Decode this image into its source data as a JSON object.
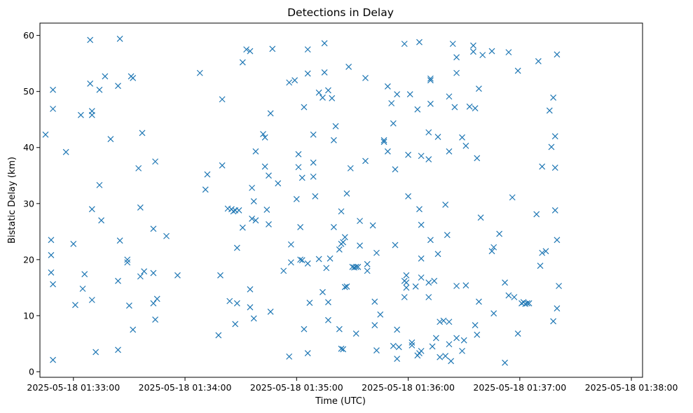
{
  "chart_data": {
    "type": "scatter",
    "title": "Detections in Delay",
    "xlabel": "Time (UTC)",
    "ylabel": "Bistatic Delay (km)",
    "marker": "x",
    "marker_color": "#1f77b4",
    "grid": false,
    "legend": "none",
    "date": "2025-05-18",
    "xlim": [
      "01:32:42",
      "01:38:06"
    ],
    "ylim": [
      -1,
      62.2
    ],
    "xticks": [
      "01:33:00",
      "01:34:00",
      "01:35:00",
      "01:36:00",
      "01:37:00",
      "01:38:00"
    ],
    "xtick_labels": [
      "2025-05-18 01:33:00",
      "2025-05-18 01:34:00",
      "2025-05-18 01:35:00",
      "2025-05-18 01:36:00",
      "2025-05-18 01:37:00",
      "2025-05-18 01:38:00"
    ],
    "yticks": [
      0,
      10,
      20,
      30,
      40,
      50,
      60
    ],
    "ytick_labels": [
      "0",
      "10",
      "20",
      "30",
      "40",
      "50",
      "60"
    ],
    "series": [
      {
        "points": [
          [
            "01:32:45",
            42.3
          ],
          [
            "01:32:48",
            23.5
          ],
          [
            "01:32:48",
            20.8
          ],
          [
            "01:32:48",
            17.7
          ],
          [
            "01:32:49",
            15.6
          ],
          [
            "01:32:49",
            50.3
          ],
          [
            "01:32:49",
            46.9
          ],
          [
            "01:32:49",
            2.1
          ],
          [
            "01:32:56",
            39.2
          ],
          [
            "01:33:00",
            22.8
          ],
          [
            "01:33:01",
            11.9
          ],
          [
            "01:33:04",
            45.8
          ],
          [
            "01:33:05",
            14.8
          ],
          [
            "01:33:06",
            17.4
          ],
          [
            "01:33:09",
            59.2
          ],
          [
            "01:33:09",
            51.4
          ],
          [
            "01:33:10",
            46.5
          ],
          [
            "01:33:10",
            45.8
          ],
          [
            "01:33:10",
            29.0
          ],
          [
            "01:33:10",
            12.8
          ],
          [
            "01:33:12",
            3.5
          ],
          [
            "01:33:14",
            33.3
          ],
          [
            "01:33:14",
            50.3
          ],
          [
            "01:33:15",
            27.0
          ],
          [
            "01:33:17",
            52.7
          ],
          [
            "01:33:20",
            41.5
          ],
          [
            "01:33:24",
            51.0
          ],
          [
            "01:33:24",
            3.9
          ],
          [
            "01:33:24",
            16.2
          ],
          [
            "01:33:25",
            59.4
          ],
          [
            "01:33:25",
            23.4
          ],
          [
            "01:33:29",
            20.0
          ],
          [
            "01:33:29",
            19.5
          ],
          [
            "01:33:30",
            11.8
          ],
          [
            "01:33:31",
            52.7
          ],
          [
            "01:33:32",
            52.4
          ],
          [
            "01:33:32",
            7.5
          ],
          [
            "01:33:35",
            36.3
          ],
          [
            "01:33:36",
            17.0
          ],
          [
            "01:33:37",
            42.6
          ],
          [
            "01:33:36",
            29.3
          ],
          [
            "01:33:38",
            17.9
          ],
          [
            "01:33:43",
            17.6
          ],
          [
            "01:33:43",
            25.5
          ],
          [
            "01:33:43",
            12.2
          ],
          [
            "01:33:44",
            37.5
          ],
          [
            "01:33:44",
            9.3
          ],
          [
            "01:33:45",
            13.0
          ],
          [
            "01:33:50",
            24.2
          ],
          [
            "01:33:56",
            17.2
          ],
          [
            "01:34:08",
            53.3
          ],
          [
            "01:34:11",
            32.5
          ],
          [
            "01:34:12",
            35.2
          ],
          [
            "01:34:18",
            6.5
          ],
          [
            "01:34:19",
            17.2
          ],
          [
            "01:34:20",
            36.8
          ],
          [
            "01:34:20",
            48.6
          ],
          [
            "01:34:23",
            29.1
          ],
          [
            "01:34:24",
            12.6
          ],
          [
            "01:34:25",
            29.0
          ],
          [
            "01:34:26",
            28.6
          ],
          [
            "01:34:27",
            8.5
          ],
          [
            "01:34:27",
            28.8
          ],
          [
            "01:34:28",
            22.1
          ],
          [
            "01:34:28",
            12.2
          ],
          [
            "01:34:29",
            28.8
          ],
          [
            "01:34:31",
            25.7
          ],
          [
            "01:34:31",
            55.2
          ],
          [
            "01:34:33",
            57.5
          ],
          [
            "01:34:35",
            57.2
          ],
          [
            "01:34:35",
            11.5
          ],
          [
            "01:34:35",
            14.7
          ],
          [
            "01:34:36",
            27.3
          ],
          [
            "01:34:36",
            32.8
          ],
          [
            "01:34:37",
            30.4
          ],
          [
            "01:34:37",
            9.5
          ],
          [
            "01:34:38",
            39.3
          ],
          [
            "01:34:38",
            27.0
          ],
          [
            "01:34:42",
            42.4
          ],
          [
            "01:34:43",
            36.6
          ],
          [
            "01:34:43",
            41.8
          ],
          [
            "01:34:44",
            28.9
          ],
          [
            "01:34:45",
            26.3
          ],
          [
            "01:34:45",
            35.0
          ],
          [
            "01:34:46",
            10.7
          ],
          [
            "01:34:46",
            46.1
          ],
          [
            "01:34:47",
            57.6
          ],
          [
            "01:34:50",
            33.6
          ],
          [
            "01:34:53",
            18.0
          ],
          [
            "01:34:56",
            51.6
          ],
          [
            "01:34:56",
            2.7
          ],
          [
            "01:34:57",
            19.5
          ],
          [
            "01:34:57",
            22.7
          ],
          [
            "01:34:59",
            52.0
          ],
          [
            "01:35:00",
            30.8
          ],
          [
            "01:35:01",
            36.5
          ],
          [
            "01:35:01",
            38.8
          ],
          [
            "01:35:02",
            25.8
          ],
          [
            "01:35:02",
            20.0
          ],
          [
            "01:35:03",
            34.6
          ],
          [
            "01:35:03",
            19.9
          ],
          [
            "01:35:04",
            47.2
          ],
          [
            "01:35:04",
            7.6
          ],
          [
            "01:35:06",
            57.5
          ],
          [
            "01:35:06",
            53.2
          ],
          [
            "01:35:06",
            3.3
          ],
          [
            "01:35:06",
            19.3
          ],
          [
            "01:35:07",
            12.3
          ],
          [
            "01:35:09",
            37.3
          ],
          [
            "01:35:09",
            42.3
          ],
          [
            "01:35:09",
            34.8
          ],
          [
            "01:35:10",
            31.3
          ],
          [
            "01:35:12",
            49.8
          ],
          [
            "01:35:12",
            20.1
          ],
          [
            "01:35:14",
            14.2
          ],
          [
            "01:35:14",
            48.9
          ],
          [
            "01:35:15",
            53.4
          ],
          [
            "01:35:15",
            58.6
          ],
          [
            "01:35:16",
            18.5
          ],
          [
            "01:35:17",
            12.4
          ],
          [
            "01:35:17",
            9.2
          ],
          [
            "01:35:17",
            50.2
          ],
          [
            "01:35:18",
            20.2
          ],
          [
            "01:35:19",
            48.8
          ],
          [
            "01:35:20",
            41.3
          ],
          [
            "01:35:20",
            25.8
          ],
          [
            "01:35:21",
            43.8
          ],
          [
            "01:35:23",
            21.8
          ],
          [
            "01:35:23",
            7.6
          ],
          [
            "01:35:24",
            28.6
          ],
          [
            "01:35:24",
            22.8
          ],
          [
            "01:35:24",
            4.1
          ],
          [
            "01:35:25",
            4.0
          ],
          [
            "01:35:25",
            23.1
          ],
          [
            "01:35:26",
            24.0
          ],
          [
            "01:35:26",
            15.1
          ],
          [
            "01:35:27",
            15.2
          ],
          [
            "01:35:27",
            31.8
          ],
          [
            "01:35:28",
            54.4
          ],
          [
            "01:35:29",
            36.3
          ],
          [
            "01:35:30",
            18.7
          ],
          [
            "01:35:31",
            18.6
          ],
          [
            "01:35:32",
            18.7
          ],
          [
            "01:35:32",
            6.8
          ],
          [
            "01:35:33",
            18.7
          ],
          [
            "01:35:34",
            22.5
          ],
          [
            "01:35:34",
            26.9
          ],
          [
            "01:35:37",
            52.4
          ],
          [
            "01:35:37",
            37.6
          ],
          [
            "01:35:38",
            19.2
          ],
          [
            "01:35:38",
            18.0
          ],
          [
            "01:35:41",
            26.1
          ],
          [
            "01:35:42",
            8.3
          ],
          [
            "01:35:42",
            12.5
          ],
          [
            "01:35:43",
            21.2
          ],
          [
            "01:35:43",
            3.8
          ],
          [
            "01:35:45",
            10.2
          ],
          [
            "01:35:47",
            41.0
          ],
          [
            "01:35:47",
            41.3
          ],
          [
            "01:35:49",
            50.9
          ],
          [
            "01:35:49",
            39.3
          ],
          [
            "01:35:51",
            47.9
          ],
          [
            "01:35:52",
            44.3
          ],
          [
            "01:35:52",
            4.6
          ],
          [
            "01:35:53",
            36.1
          ],
          [
            "01:35:53",
            22.6
          ],
          [
            "01:35:54",
            2.3
          ],
          [
            "01:35:54",
            7.5
          ],
          [
            "01:35:54",
            49.5
          ],
          [
            "01:35:55",
            4.4
          ],
          [
            "01:35:58",
            58.5
          ],
          [
            "01:35:58",
            13.3
          ],
          [
            "01:35:58",
            16.2
          ],
          [
            "01:35:59",
            15.0
          ],
          [
            "01:35:59",
            17.2
          ],
          [
            "01:35:59",
            15.9
          ],
          [
            "01:36:00",
            38.7
          ],
          [
            "01:36:01",
            49.5
          ],
          [
            "01:36:00",
            31.3
          ],
          [
            "01:36:02",
            4.7
          ],
          [
            "01:36:02",
            5.2
          ],
          [
            "01:36:04",
            15.2
          ],
          [
            "01:36:05",
            46.8
          ],
          [
            "01:36:05",
            2.9
          ],
          [
            "01:36:06",
            58.8
          ],
          [
            "01:36:06",
            29.0
          ],
          [
            "01:36:06",
            3.3
          ],
          [
            "01:36:07",
            3.7
          ],
          [
            "01:36:07",
            26.2
          ],
          [
            "01:36:07",
            20.2
          ],
          [
            "01:36:07",
            38.5
          ],
          [
            "01:36:07",
            16.8
          ],
          [
            "01:36:11",
            42.7
          ],
          [
            "01:36:11",
            13.3
          ],
          [
            "01:36:11",
            15.9
          ],
          [
            "01:36:11",
            37.9
          ],
          [
            "01:36:12",
            52.3
          ],
          [
            "01:36:12",
            52.0
          ],
          [
            "01:36:12",
            47.8
          ],
          [
            "01:36:12",
            23.5
          ],
          [
            "01:36:13",
            4.5
          ],
          [
            "01:36:14",
            16.2
          ],
          [
            "01:36:15",
            6.0
          ],
          [
            "01:36:16",
            21.0
          ],
          [
            "01:36:16",
            41.9
          ],
          [
            "01:36:17",
            8.9
          ],
          [
            "01:36:17",
            2.6
          ],
          [
            "01:36:19",
            9.1
          ],
          [
            "01:36:20",
            2.8
          ],
          [
            "01:36:20",
            29.8
          ],
          [
            "01:36:21",
            24.4
          ],
          [
            "01:36:22",
            39.3
          ],
          [
            "01:36:22",
            49.1
          ],
          [
            "01:36:22",
            8.9
          ],
          [
            "01:36:22",
            4.9
          ],
          [
            "01:36:23",
            1.9
          ],
          [
            "01:36:24",
            58.5
          ],
          [
            "01:36:25",
            47.2
          ],
          [
            "01:36:26",
            56.1
          ],
          [
            "01:36:26",
            15.3
          ],
          [
            "01:36:26",
            53.3
          ],
          [
            "01:36:26",
            6.0
          ],
          [
            "01:36:29",
            41.8
          ],
          [
            "01:36:29",
            3.7
          ],
          [
            "01:36:30",
            5.6
          ],
          [
            "01:36:31",
            15.4
          ],
          [
            "01:36:31",
            40.3
          ],
          [
            "01:36:33",
            47.3
          ],
          [
            "01:36:35",
            58.2
          ],
          [
            "01:36:35",
            57.1
          ],
          [
            "01:36:36",
            47.0
          ],
          [
            "01:36:36",
            8.3
          ],
          [
            "01:36:37",
            38.1
          ],
          [
            "01:36:37",
            6.6
          ],
          [
            "01:36:38",
            50.5
          ],
          [
            "01:36:38",
            12.5
          ],
          [
            "01:36:39",
            27.5
          ],
          [
            "01:36:40",
            56.5
          ],
          [
            "01:36:45",
            57.2
          ],
          [
            "01:36:45",
            21.5
          ],
          [
            "01:36:46",
            22.2
          ],
          [
            "01:36:46",
            10.4
          ],
          [
            "01:36:49",
            24.6
          ],
          [
            "01:36:52",
            1.6
          ],
          [
            "01:36:52",
            15.9
          ],
          [
            "01:36:54",
            57.0
          ],
          [
            "01:36:54",
            13.6
          ],
          [
            "01:36:56",
            31.1
          ],
          [
            "01:36:57",
            13.3
          ],
          [
            "01:36:59",
            53.7
          ],
          [
            "01:36:59",
            6.8
          ],
          [
            "01:37:01",
            12.2
          ],
          [
            "01:37:02",
            12.4
          ],
          [
            "01:37:03",
            12.1
          ],
          [
            "01:37:04",
            12.2
          ],
          [
            "01:37:05",
            12.2
          ],
          [
            "01:37:09",
            28.1
          ],
          [
            "01:37:10",
            55.4
          ],
          [
            "01:37:11",
            18.9
          ],
          [
            "01:37:12",
            21.2
          ],
          [
            "01:37:12",
            36.6
          ],
          [
            "01:37:14",
            21.5
          ],
          [
            "01:37:16",
            46.6
          ],
          [
            "01:37:17",
            40.1
          ],
          [
            "01:37:18",
            9.0
          ],
          [
            "01:37:18",
            48.9
          ],
          [
            "01:37:19",
            42.0
          ],
          [
            "01:37:19",
            36.4
          ],
          [
            "01:37:19",
            28.8
          ],
          [
            "01:37:20",
            23.5
          ],
          [
            "01:37:20",
            11.3
          ],
          [
            "01:37:20",
            56.6
          ],
          [
            "01:37:21",
            15.3
          ]
        ]
      }
    ]
  }
}
